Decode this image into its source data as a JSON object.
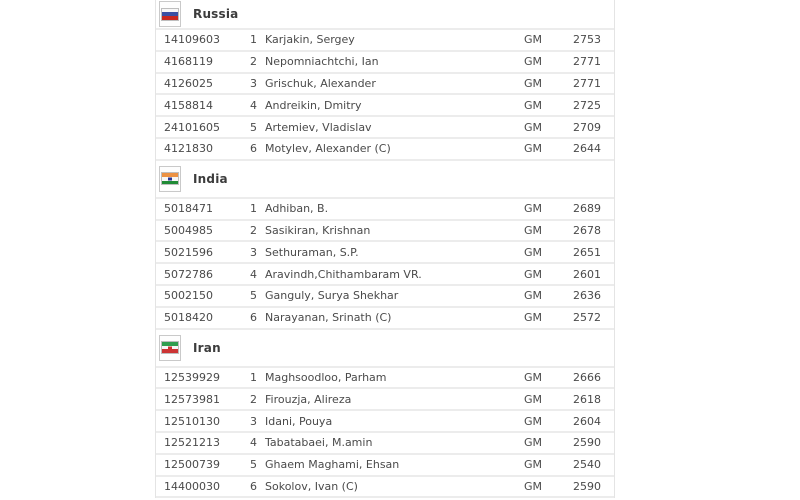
{
  "colors": {
    "row_text": "#4a4a4a",
    "team_name_text": "#3c3c3c",
    "row_separator": "#ececec",
    "table_border": "#e4e4e4",
    "flag_box_border": "#c9c9c9"
  },
  "teams": [
    {
      "name": "Russia",
      "flag_icon": "russia-flag-icon",
      "flag": {
        "stripes": [
          "#f7f7f7",
          "#3a50a3",
          "#c8281f"
        ],
        "emblem": ""
      },
      "players": [
        {
          "id": "14109603",
          "board": "1",
          "name": "Karjakin, Sergey",
          "title": "GM",
          "rating": "2753"
        },
        {
          "id": "4168119",
          "board": "2",
          "name": "Nepomniachtchi, Ian",
          "title": "GM",
          "rating": "2771"
        },
        {
          "id": "4126025",
          "board": "3",
          "name": "Grischuk, Alexander",
          "title": "GM",
          "rating": "2771"
        },
        {
          "id": "4158814",
          "board": "4",
          "name": "Andreikin, Dmitry",
          "title": "GM",
          "rating": "2725"
        },
        {
          "id": "24101605",
          "board": "5",
          "name": "Artemiev, Vladislav",
          "title": "GM",
          "rating": "2709"
        },
        {
          "id": "4121830",
          "board": "6",
          "name": "Motylev, Alexander (C)",
          "title": "GM",
          "rating": "2644"
        }
      ]
    },
    {
      "name": "India",
      "flag_icon": "india-flag-icon",
      "flag": {
        "stripes": [
          "#ec9244",
          "#f7f7f7",
          "#1f8a35"
        ],
        "emblem": "#283593"
      },
      "players": [
        {
          "id": "5018471",
          "board": "1",
          "name": "Adhiban, B.",
          "title": "GM",
          "rating": "2689"
        },
        {
          "id": "5004985",
          "board": "2",
          "name": "Sasikiran, Krishnan",
          "title": "GM",
          "rating": "2678"
        },
        {
          "id": "5021596",
          "board": "3",
          "name": "Sethuraman, S.P.",
          "title": "GM",
          "rating": "2651"
        },
        {
          "id": "5072786",
          "board": "4",
          "name": "Aravindh,Chithambaram VR.",
          "title": "GM",
          "rating": "2601"
        },
        {
          "id": "5002150",
          "board": "5",
          "name": "Ganguly, Surya Shekhar",
          "title": "GM",
          "rating": "2636"
        },
        {
          "id": "5018420",
          "board": "6",
          "name": "Narayanan, Srinath (C)",
          "title": "GM",
          "rating": "2572"
        }
      ]
    },
    {
      "name": "Iran",
      "flag_icon": "iran-flag-icon",
      "flag": {
        "stripes": [
          "#2f9e4f",
          "#f7f7f7",
          "#cc3333"
        ],
        "emblem": "#cc3333"
      },
      "players": [
        {
          "id": "12539929",
          "board": "1",
          "name": "Maghsoodloo, Parham",
          "title": "GM",
          "rating": "2666"
        },
        {
          "id": "12573981",
          "board": "2",
          "name": "Firouzja, Alireza",
          "title": "GM",
          "rating": "2618"
        },
        {
          "id": "12510130",
          "board": "3",
          "name": "Idani, Pouya",
          "title": "GM",
          "rating": "2604"
        },
        {
          "id": "12521213",
          "board": "4",
          "name": "Tabatabaei, M.amin",
          "title": "GM",
          "rating": "2590"
        },
        {
          "id": "12500739",
          "board": "5",
          "name": "Ghaem Maghami, Ehsan",
          "title": "GM",
          "rating": "2540"
        },
        {
          "id": "14400030",
          "board": "6",
          "name": "Sokolov, Ivan (C)",
          "title": "GM",
          "rating": "2590"
        }
      ]
    }
  ]
}
